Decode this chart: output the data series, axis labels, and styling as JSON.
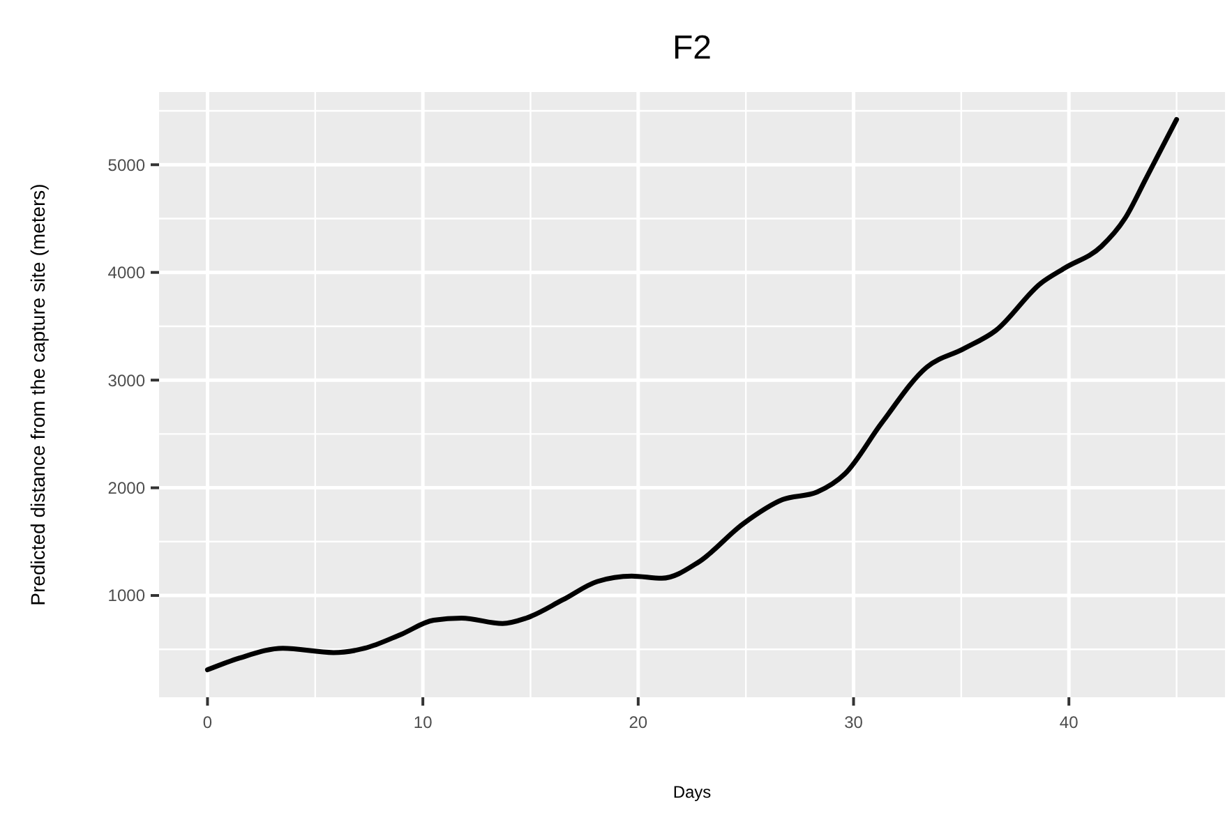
{
  "chart_data": {
    "type": "line",
    "title": "F2",
    "xlabel": "Days",
    "ylabel": "Predicted distance from the capture site (meters)",
    "x": [
      0,
      1.5,
      3.5,
      5.85,
      7.3,
      9,
      10.5,
      11.8,
      13.7,
      14.8,
      16.5,
      18.1,
      19.7,
      21.1,
      22.8,
      24.9,
      26.7,
      28.3,
      29.6,
      31.3,
      33.4,
      35.1,
      36.6,
      38.7,
      39.8,
      41.5,
      42.6,
      43.6,
      45
    ],
    "series": [
      {
        "color": "#000000",
        "values": [
          310,
          420,
          510,
          470,
          510,
          640,
          770,
          790,
          740,
          790,
          960,
          1130,
          1180,
          1160,
          1310,
          1670,
          1890,
          1960,
          2130,
          2600,
          3120,
          3290,
          3460,
          3900,
          4040,
          4240,
          4500,
          4880,
          5420
        ]
      }
    ],
    "xlim": [
      -2.25,
      47.25
    ],
    "ylim": [
      55,
      5675
    ],
    "xticks": [
      0,
      10,
      20,
      30,
      40
    ],
    "yticks": [
      1000,
      2000,
      3000,
      4000,
      5000
    ],
    "grid": true,
    "marker": "none",
    "line_style": "solid"
  }
}
